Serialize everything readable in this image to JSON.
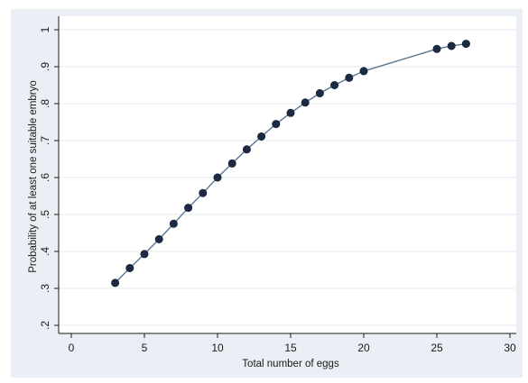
{
  "chart_data": {
    "type": "line",
    "title": "",
    "xlabel": "Total number of eggs",
    "ylabel": "Probability of at least one suitable embryo",
    "xlim": [
      0,
      30
    ],
    "ylim": [
      0.2,
      1.0
    ],
    "x_ticks": [
      0,
      5,
      10,
      15,
      20,
      25,
      30
    ],
    "x_tick_labels": [
      "0",
      "5",
      "10",
      "15",
      "20",
      "25",
      "30"
    ],
    "y_ticks": [
      0.2,
      0.3,
      0.4,
      0.5,
      0.6,
      0.7,
      0.8,
      0.9,
      1.0
    ],
    "y_tick_labels": [
      ".2",
      ".3",
      ".4",
      ".5",
      ".6",
      ".7",
      ".8",
      ".9",
      "1"
    ],
    "grid": "horizontal",
    "legend": "none",
    "colors": {
      "outer_background": "#e9eff4",
      "plot_background": "#ffffff",
      "line": "#5c7890",
      "marker": "#1b2b45",
      "grid": "#e6eaee",
      "axis": "#1a1a1a"
    },
    "series": [
      {
        "x": [
          3,
          4,
          5,
          6,
          7,
          8,
          9,
          10,
          11,
          12,
          13,
          14,
          15,
          16,
          17,
          18,
          19,
          20,
          25,
          26,
          27
        ],
        "values": [
          0.315,
          0.355,
          0.393,
          0.433,
          0.475,
          0.518,
          0.558,
          0.6,
          0.638,
          0.676,
          0.711,
          0.745,
          0.775,
          0.803,
          0.828,
          0.85,
          0.87,
          0.888,
          0.948,
          0.956,
          0.962
        ]
      }
    ]
  }
}
